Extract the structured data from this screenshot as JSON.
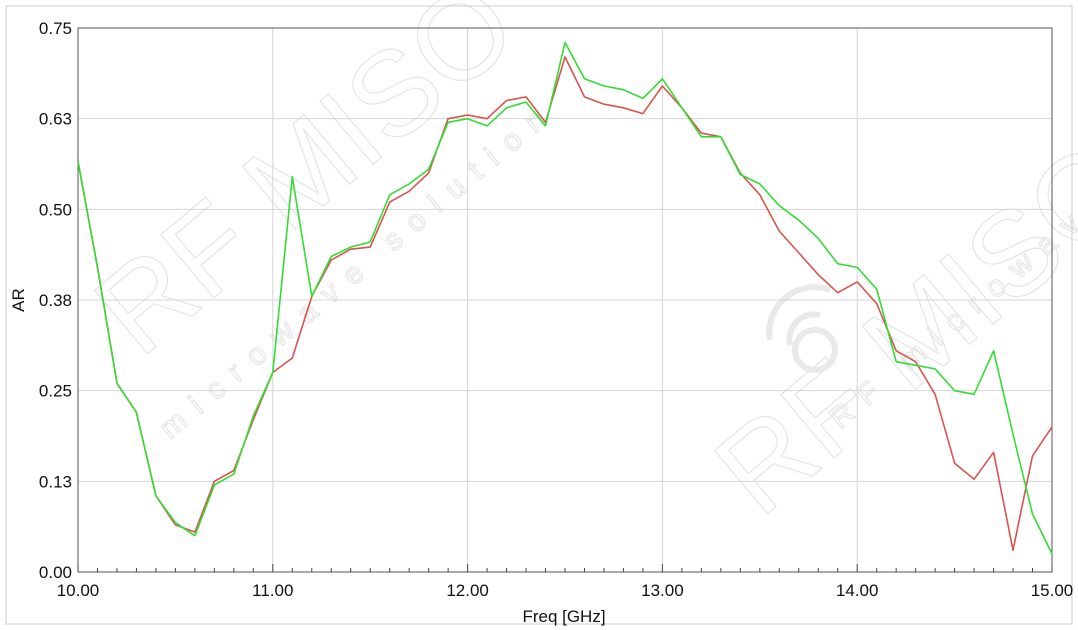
{
  "chart_data": {
    "type": "line",
    "title": "",
    "xlabel": "Freq [GHz]",
    "ylabel": "AR",
    "xlim": [
      10,
      15
    ],
    "ylim": [
      0,
      0.75
    ],
    "x_ticks": [
      "10.00",
      "11.00",
      "12.00",
      "13.00",
      "14.00",
      "15.00"
    ],
    "y_ticks": [
      "0.00",
      "0.13",
      "0.25",
      "0.38",
      "0.50",
      "0.63",
      "0.75"
    ],
    "x_tick_values": [
      10,
      11,
      12,
      13,
      14,
      15
    ],
    "y_tick_values": [
      0,
      0.125,
      0.25,
      0.375,
      0.5,
      0.625,
      0.75
    ],
    "grid": true,
    "legend": "none",
    "x": [
      10.0,
      10.1,
      10.2,
      10.3,
      10.4,
      10.5,
      10.6,
      10.7,
      10.8,
      10.9,
      11.0,
      11.1,
      11.2,
      11.3,
      11.4,
      11.5,
      11.6,
      11.7,
      11.8,
      11.9,
      12.0,
      12.1,
      12.2,
      12.3,
      12.4,
      12.5,
      12.6,
      12.7,
      12.8,
      12.9,
      13.0,
      13.1,
      13.2,
      13.3,
      13.4,
      13.5,
      13.6,
      13.7,
      13.8,
      13.9,
      14.0,
      14.1,
      14.2,
      14.3,
      14.4,
      14.5,
      14.6,
      14.7,
      14.8,
      14.9,
      15.0
    ],
    "series": [
      {
        "color": "#d9534f",
        "values": [
          0.566,
          0.42,
          0.26,
          0.22,
          0.105,
          0.065,
          0.055,
          0.125,
          0.14,
          0.21,
          0.275,
          0.295,
          0.38,
          0.43,
          0.445,
          0.448,
          0.51,
          0.525,
          0.55,
          0.625,
          0.63,
          0.625,
          0.65,
          0.655,
          0.62,
          0.71,
          0.655,
          0.645,
          0.64,
          0.632,
          0.67,
          0.64,
          0.605,
          0.6,
          0.55,
          0.52,
          0.47,
          0.44,
          0.41,
          0.385,
          0.4,
          0.37,
          0.305,
          0.29,
          0.245,
          0.15,
          0.128,
          0.165,
          0.03,
          0.16,
          0.2
        ]
      },
      {
        "color": "#33dd33",
        "values": [
          0.566,
          0.42,
          0.26,
          0.22,
          0.105,
          0.068,
          0.05,
          0.12,
          0.135,
          0.215,
          0.275,
          0.545,
          0.38,
          0.435,
          0.448,
          0.455,
          0.52,
          0.535,
          0.555,
          0.62,
          0.625,
          0.615,
          0.64,
          0.648,
          0.615,
          0.73,
          0.68,
          0.67,
          0.665,
          0.653,
          0.68,
          0.64,
          0.6,
          0.6,
          0.548,
          0.535,
          0.505,
          0.485,
          0.46,
          0.425,
          0.42,
          0.39,
          0.29,
          0.285,
          0.28,
          0.25,
          0.245,
          0.305,
          0.19,
          0.08,
          0.025
        ]
      }
    ]
  }
}
